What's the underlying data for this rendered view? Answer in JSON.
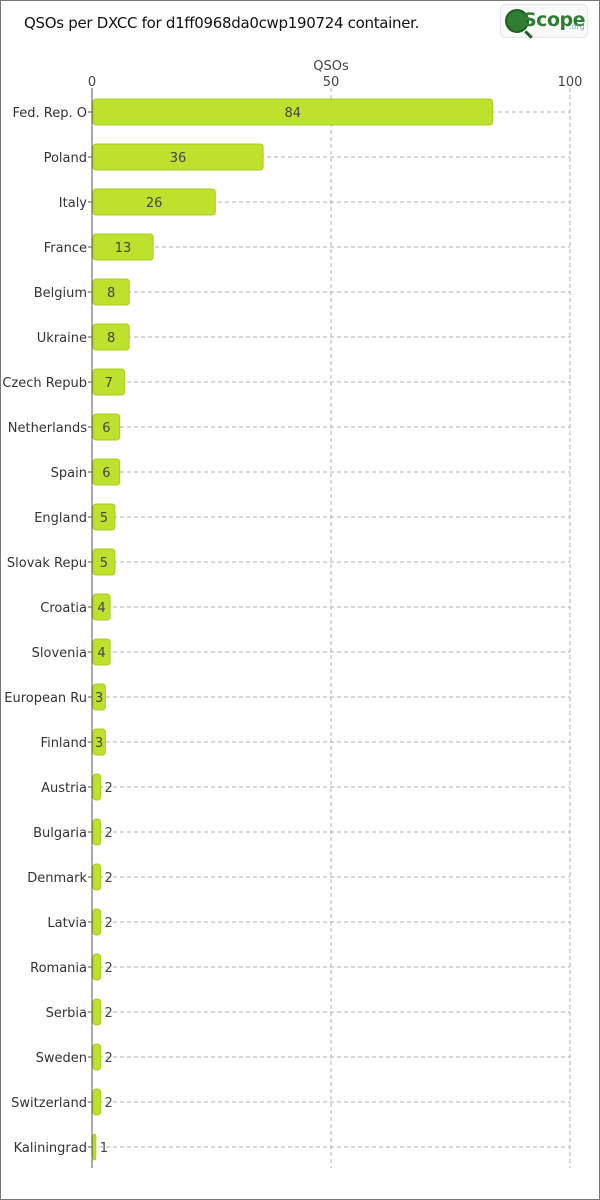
{
  "header": {
    "title": "QSOs per DXCC for d1ff0968da0cwp190724 container.",
    "logo_text": "Scope",
    "logo_suffix": ".org"
  },
  "colors": {
    "bar_fill": "#bde22e",
    "bar_stroke": "#a8cc1f",
    "grid": "#b0b0b0",
    "axis": "#555555"
  },
  "chart_data": {
    "type": "bar",
    "orientation": "horizontal",
    "xlabel": "QSOs",
    "xlim": [
      0,
      100
    ],
    "xticks": [
      0,
      50,
      100
    ],
    "grid": true,
    "categories": [
      "Fed. Rep. O",
      "Poland",
      "Italy",
      "France",
      "Belgium",
      "Ukraine",
      "Czech Repub",
      "Netherlands",
      "Spain",
      "England",
      "Slovak Repu",
      "Croatia",
      "Slovenia",
      "European Ru",
      "Finland",
      "Austria",
      "Bulgaria",
      "Denmark",
      "Latvia",
      "Romania",
      "Serbia",
      "Sweden",
      "Switzerland",
      "Kaliningrad"
    ],
    "values": [
      84,
      36,
      26,
      13,
      8,
      8,
      7,
      6,
      6,
      5,
      5,
      4,
      4,
      3,
      3,
      2,
      2,
      2,
      2,
      2,
      2,
      2,
      2,
      1
    ]
  }
}
